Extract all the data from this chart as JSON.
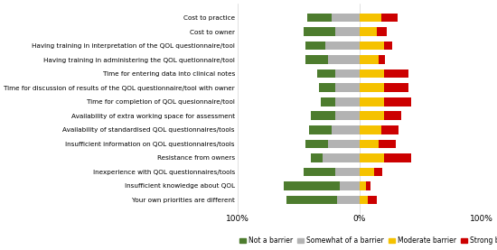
{
  "categories": [
    "Cost to practice",
    "Cost to owner",
    "Having training in interpretation of the QOL questionnaire/tool",
    "Having training in administering the QOL quetionnaire/tool",
    "Time for entering data into clinical notes",
    "Time for discussion of results of the QOL questionnaire/tool with owner",
    "Time for completion of QOL quesionnaire/tool",
    "Availability of extra working space for assessment",
    "Availability of standardised QOL questionnaires/tools",
    "Insufficient information on QOL questionnaires/tools",
    "Resistance from owners",
    "Inexperience with QOL questionnaires/tools",
    "Insufficient knowledge about QOL",
    "Your own priorities are different"
  ],
  "not_a_barrier": [
    20,
    26,
    16,
    18,
    15,
    13,
    12,
    20,
    18,
    18,
    10,
    26,
    46,
    42
  ],
  "somewhat_a_barrier": [
    23,
    20,
    28,
    26,
    20,
    20,
    20,
    20,
    23,
    26,
    30,
    20,
    16,
    18
  ],
  "moderate_barrier": [
    18,
    14,
    20,
    16,
    20,
    20,
    20,
    20,
    18,
    16,
    20,
    12,
    5,
    7
  ],
  "strong_barrier": [
    13,
    8,
    7,
    5,
    20,
    20,
    22,
    14,
    14,
    14,
    22,
    7,
    4,
    7
  ],
  "colors": {
    "not_a_barrier": "#4d7c2e",
    "somewhat_a_barrier": "#b3b3b3",
    "moderate_barrier": "#f5c200",
    "strong_barrier": "#cc0000"
  },
  "legend_labels": [
    "Not a barrier",
    "Somewhat of a barrier",
    "Moderate barrier",
    "Strong barrier"
  ],
  "xlim": [
    -100,
    100
  ],
  "figsize": [
    5.5,
    2.77
  ],
  "dpi": 100,
  "bar_height": 0.62
}
